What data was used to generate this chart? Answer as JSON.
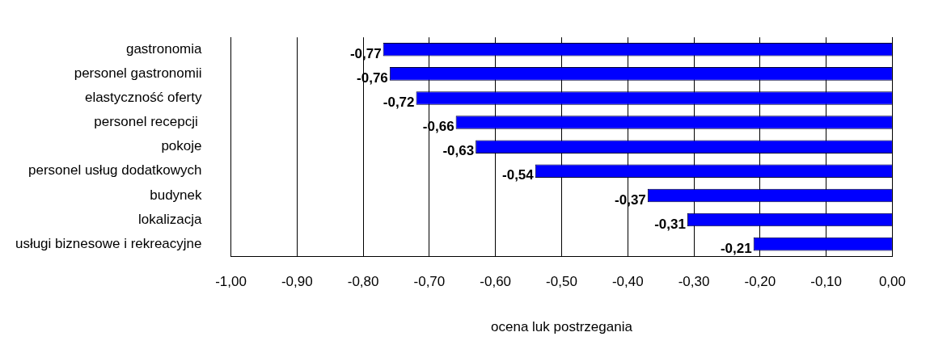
{
  "chart_data": {
    "type": "bar",
    "orientation": "horizontal",
    "xlabel": "ocena luk postrzegania",
    "categories": [
      "gastronomia",
      "personel gastronomii",
      "elastyczność oferty",
      "personel recepcji ",
      "pokoje",
      "personel usług dodatkowych",
      "budynek",
      "lokalizacja",
      "usługi biznesowe i rekreacyjne"
    ],
    "values": [
      -0.77,
      -0.76,
      -0.72,
      -0.66,
      -0.63,
      -0.54,
      -0.37,
      -0.31,
      -0.21
    ],
    "value_labels": [
      "-0,77",
      "-0,76",
      "-0,72",
      "-0,66",
      "-0,63",
      "-0,54",
      "-0,37",
      "-0,31",
      "-0,21"
    ],
    "color": "#0000ff",
    "xlim": [
      -1,
      0
    ],
    "xticks": [
      {
        "value": -1,
        "label": "-1,00"
      },
      {
        "value": -0.9,
        "label": "-0,90"
      },
      {
        "value": -0.8,
        "label": "-0,80"
      },
      {
        "value": -0.7,
        "label": "-0,70"
      },
      {
        "value": -0.6,
        "label": "-0,60"
      },
      {
        "value": -0.5,
        "label": "-0,50"
      },
      {
        "value": -0.4,
        "label": "-0,40"
      },
      {
        "value": -0.3,
        "label": "-0,30"
      },
      {
        "value": -0.2,
        "label": "-0,20"
      },
      {
        "value": -0.1,
        "label": "-0,10"
      },
      {
        "value": 0,
        "label": "0,00"
      }
    ],
    "grid": "x",
    "legend": false
  }
}
